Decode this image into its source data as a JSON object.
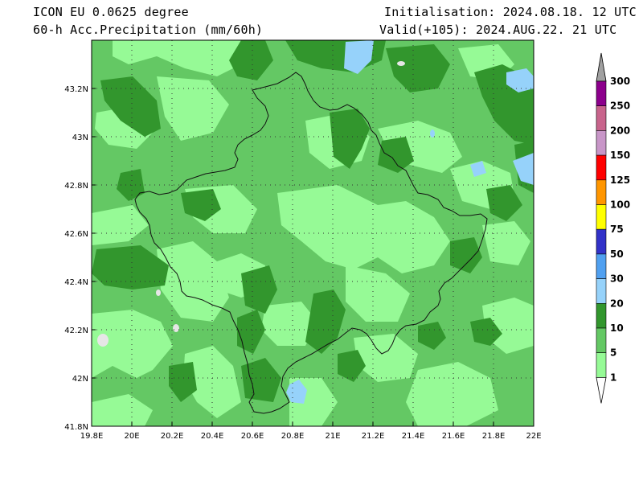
{
  "header": {
    "model": "ICON EU 0.0625 degree",
    "product": "60-h Acc.Precipitation (mm/60h)",
    "init": "Initialisation: 2024.08.18. 12 UTC",
    "valid": "Valid(+105): 2024.AUG.22. 21 UTC"
  },
  "map": {
    "lon_ticks": [
      "19.8E",
      "20E",
      "20.2E",
      "20.4E",
      "20.6E",
      "20.8E",
      "21E",
      "21.2E",
      "21.4E",
      "21.6E",
      "21.8E",
      "22E"
    ],
    "lat_ticks": [
      "43.2N",
      "43N",
      "42.8N",
      "42.6N",
      "42.4N",
      "42.2N",
      "42N",
      "41.8N"
    ],
    "lon_range": [
      19.8,
      22.0
    ],
    "lat_range": [
      41.8,
      43.4
    ]
  },
  "colorbar": {
    "levels": [
      "300",
      "250",
      "200",
      "150",
      "125",
      "100",
      "75",
      "50",
      "30",
      "20",
      "10",
      "5",
      "1"
    ],
    "colors": [
      "#8c008c",
      "#c8648c",
      "#c896c8",
      "#ff0000",
      "#ff9600",
      "#ffff00",
      "#3232c8",
      "#50a0f0",
      "#96d2fa",
      "#32962d",
      "#64c864",
      "#96fa96"
    ],
    "top_arrow_color": "#a0a0a0",
    "bottom_arrow_color": "#ffffff"
  }
}
